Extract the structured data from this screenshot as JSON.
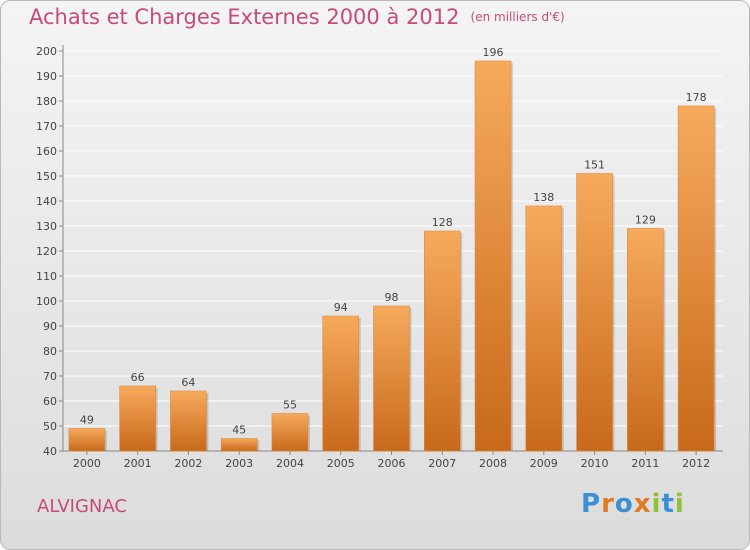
{
  "header": {
    "title": "Achats et Charges Externes 2000 à 2012",
    "subtitle": "(en milliers d'€)"
  },
  "footer": {
    "commune": "ALVIGNAC",
    "logo": "Proxiti"
  },
  "colors": {
    "bar_light": "#f7aa5c",
    "bar_dark": "#c8691b",
    "title": "#c64b7a",
    "grid": "#ffffff",
    "logo_letters": [
      "#3b8fd6",
      "#e07b26",
      "#3b8fd6",
      "#e07b26",
      "#8fc23a",
      "#3b8fd6",
      "#8fc23a"
    ]
  },
  "chart_data": {
    "type": "bar",
    "title": "Achats et Charges Externes 2000 à 2012",
    "subtitle": "(en milliers d'€)",
    "categories": [
      "2000",
      "2001",
      "2002",
      "2003",
      "2004",
      "2005",
      "2006",
      "2007",
      "2008",
      "2009",
      "2010",
      "2011",
      "2012"
    ],
    "values": [
      49,
      66,
      64,
      45,
      55,
      94,
      98,
      128,
      196,
      138,
      151,
      129,
      178
    ],
    "ylim": [
      40,
      200
    ],
    "yticks": [
      40,
      50,
      60,
      70,
      80,
      90,
      100,
      110,
      120,
      130,
      140,
      150,
      160,
      170,
      180,
      190,
      200
    ],
    "xlabel": "",
    "ylabel": "",
    "grid": true,
    "data_labels": true
  }
}
